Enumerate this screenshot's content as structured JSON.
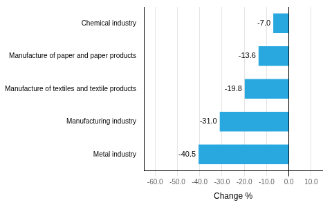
{
  "chart_data": {
    "type": "bar",
    "orientation": "horizontal",
    "categories": [
      "Metal industry",
      "Manufacturing industry",
      "Manufacture of textiles and textile products",
      "Manufacture of paper and paper products",
      "Chemical industry"
    ],
    "values": [
      -40.5,
      -31.0,
      -19.8,
      -13.6,
      -7.0
    ],
    "value_labels": [
      "-40.5",
      "-31.0",
      "-19.8",
      "-13.6",
      "-7.0"
    ],
    "data_labels": true,
    "color": "#29a8e0",
    "xlabel": "Change %",
    "xlim": [
      -65,
      15
    ],
    "xticks": [
      {
        "value": -60,
        "label": "-60.0"
      },
      {
        "value": -50,
        "label": "-50.0"
      },
      {
        "value": -40,
        "label": "-40.0"
      },
      {
        "value": -30,
        "label": "-30.0"
      },
      {
        "value": -20,
        "label": "-20.0"
      },
      {
        "value": -10,
        "label": "-10.0"
      },
      {
        "value": 0,
        "label": "0.0"
      },
      {
        "value": 10,
        "label": "10.0"
      }
    ],
    "grid": true
  }
}
